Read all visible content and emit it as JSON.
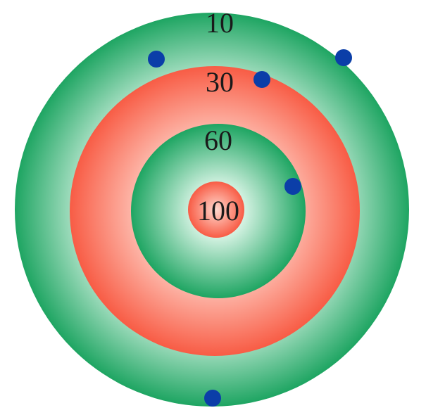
{
  "target": {
    "rings": [
      {
        "label": "10",
        "style": "green"
      },
      {
        "label": "30",
        "style": "red"
      },
      {
        "label": "60",
        "style": "green"
      },
      {
        "label": "100",
        "style": "red"
      }
    ],
    "hits": 5
  },
  "colors": {
    "green_edge": "#1ea562",
    "green_center": "#d4f2e2",
    "red_edge": "#f85c45",
    "red_center": "#ffd9cf",
    "dot": "#0b3ea8",
    "label": "#1a1a1a"
  }
}
